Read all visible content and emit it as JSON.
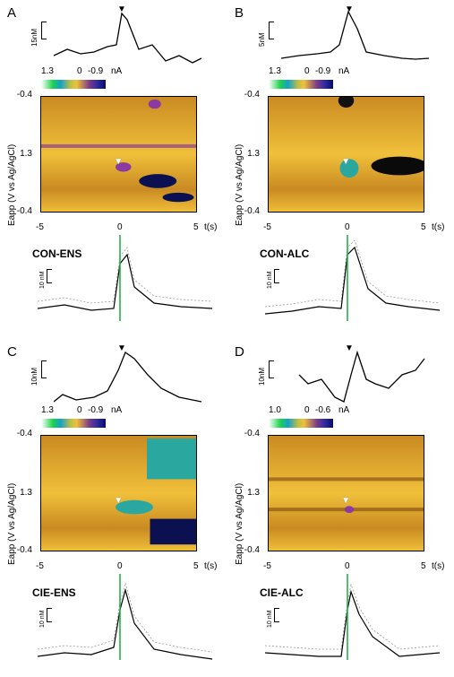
{
  "panels": [
    {
      "letter": "A",
      "scale_top": "15nM",
      "colorbar": {
        "high": "1.3",
        "zero": "0",
        "low": "-0.9",
        "unit": "nA"
      },
      "y_ticks": [
        "-0.4",
        "1.3",
        "-0.4"
      ],
      "y_label": "Eapp (V vs Ag/AgCl)",
      "x_ticks": [
        "-5",
        "0",
        "5"
      ],
      "x_unit": "t(s)",
      "condition": "CON-ENS",
      "scale_bottom": "10 nM"
    },
    {
      "letter": "B",
      "scale_top": "5nM",
      "colorbar": {
        "high": "1.3",
        "zero": "0",
        "low": "-0.9",
        "unit": "nA"
      },
      "y_ticks": [
        "-0.4",
        "1.3",
        "-0.4"
      ],
      "y_label": "Eapp (V vs Ag/AgCl)",
      "x_ticks": [
        "-5",
        "0",
        "5"
      ],
      "x_unit": "t(s)",
      "condition": "CON-ALC",
      "scale_bottom": "10 nM"
    },
    {
      "letter": "C",
      "scale_top": "10nM",
      "colorbar": {
        "high": "1.3",
        "zero": "0",
        "low": "-0.9",
        "unit": "nA"
      },
      "y_ticks": [
        "-0.4",
        "1.3",
        "-0.4"
      ],
      "y_label": "Eapp (V vs Ag/AgCl)",
      "x_ticks": [
        "-5",
        "0",
        "5"
      ],
      "x_unit": "t(s)",
      "condition": "CIE-ENS",
      "scale_bottom": "10 nM"
    },
    {
      "letter": "D",
      "scale_top": "10nM",
      "colorbar": {
        "high": "1.0",
        "zero": "0",
        "low": "-0.6",
        "unit": "nA"
      },
      "y_ticks": [
        "-0.4",
        "1.3",
        "-0.4"
      ],
      "y_label": "Eapp (V vs Ag/AgCl)",
      "x_ticks": [
        "-5",
        "0",
        "5"
      ],
      "x_unit": "t(s)",
      "condition": "CIE-ALC",
      "scale_bottom": "10 nM"
    }
  ],
  "colors": {
    "stim_line": "#22b14c",
    "heat_base": "#c98a22",
    "heat_dark": "#8a5612",
    "heat_light": "#f0c03a",
    "blob_purple": "#8a3aa0",
    "blob_teal": "#2aa8a0",
    "blob_navy": "#0a1050"
  }
}
